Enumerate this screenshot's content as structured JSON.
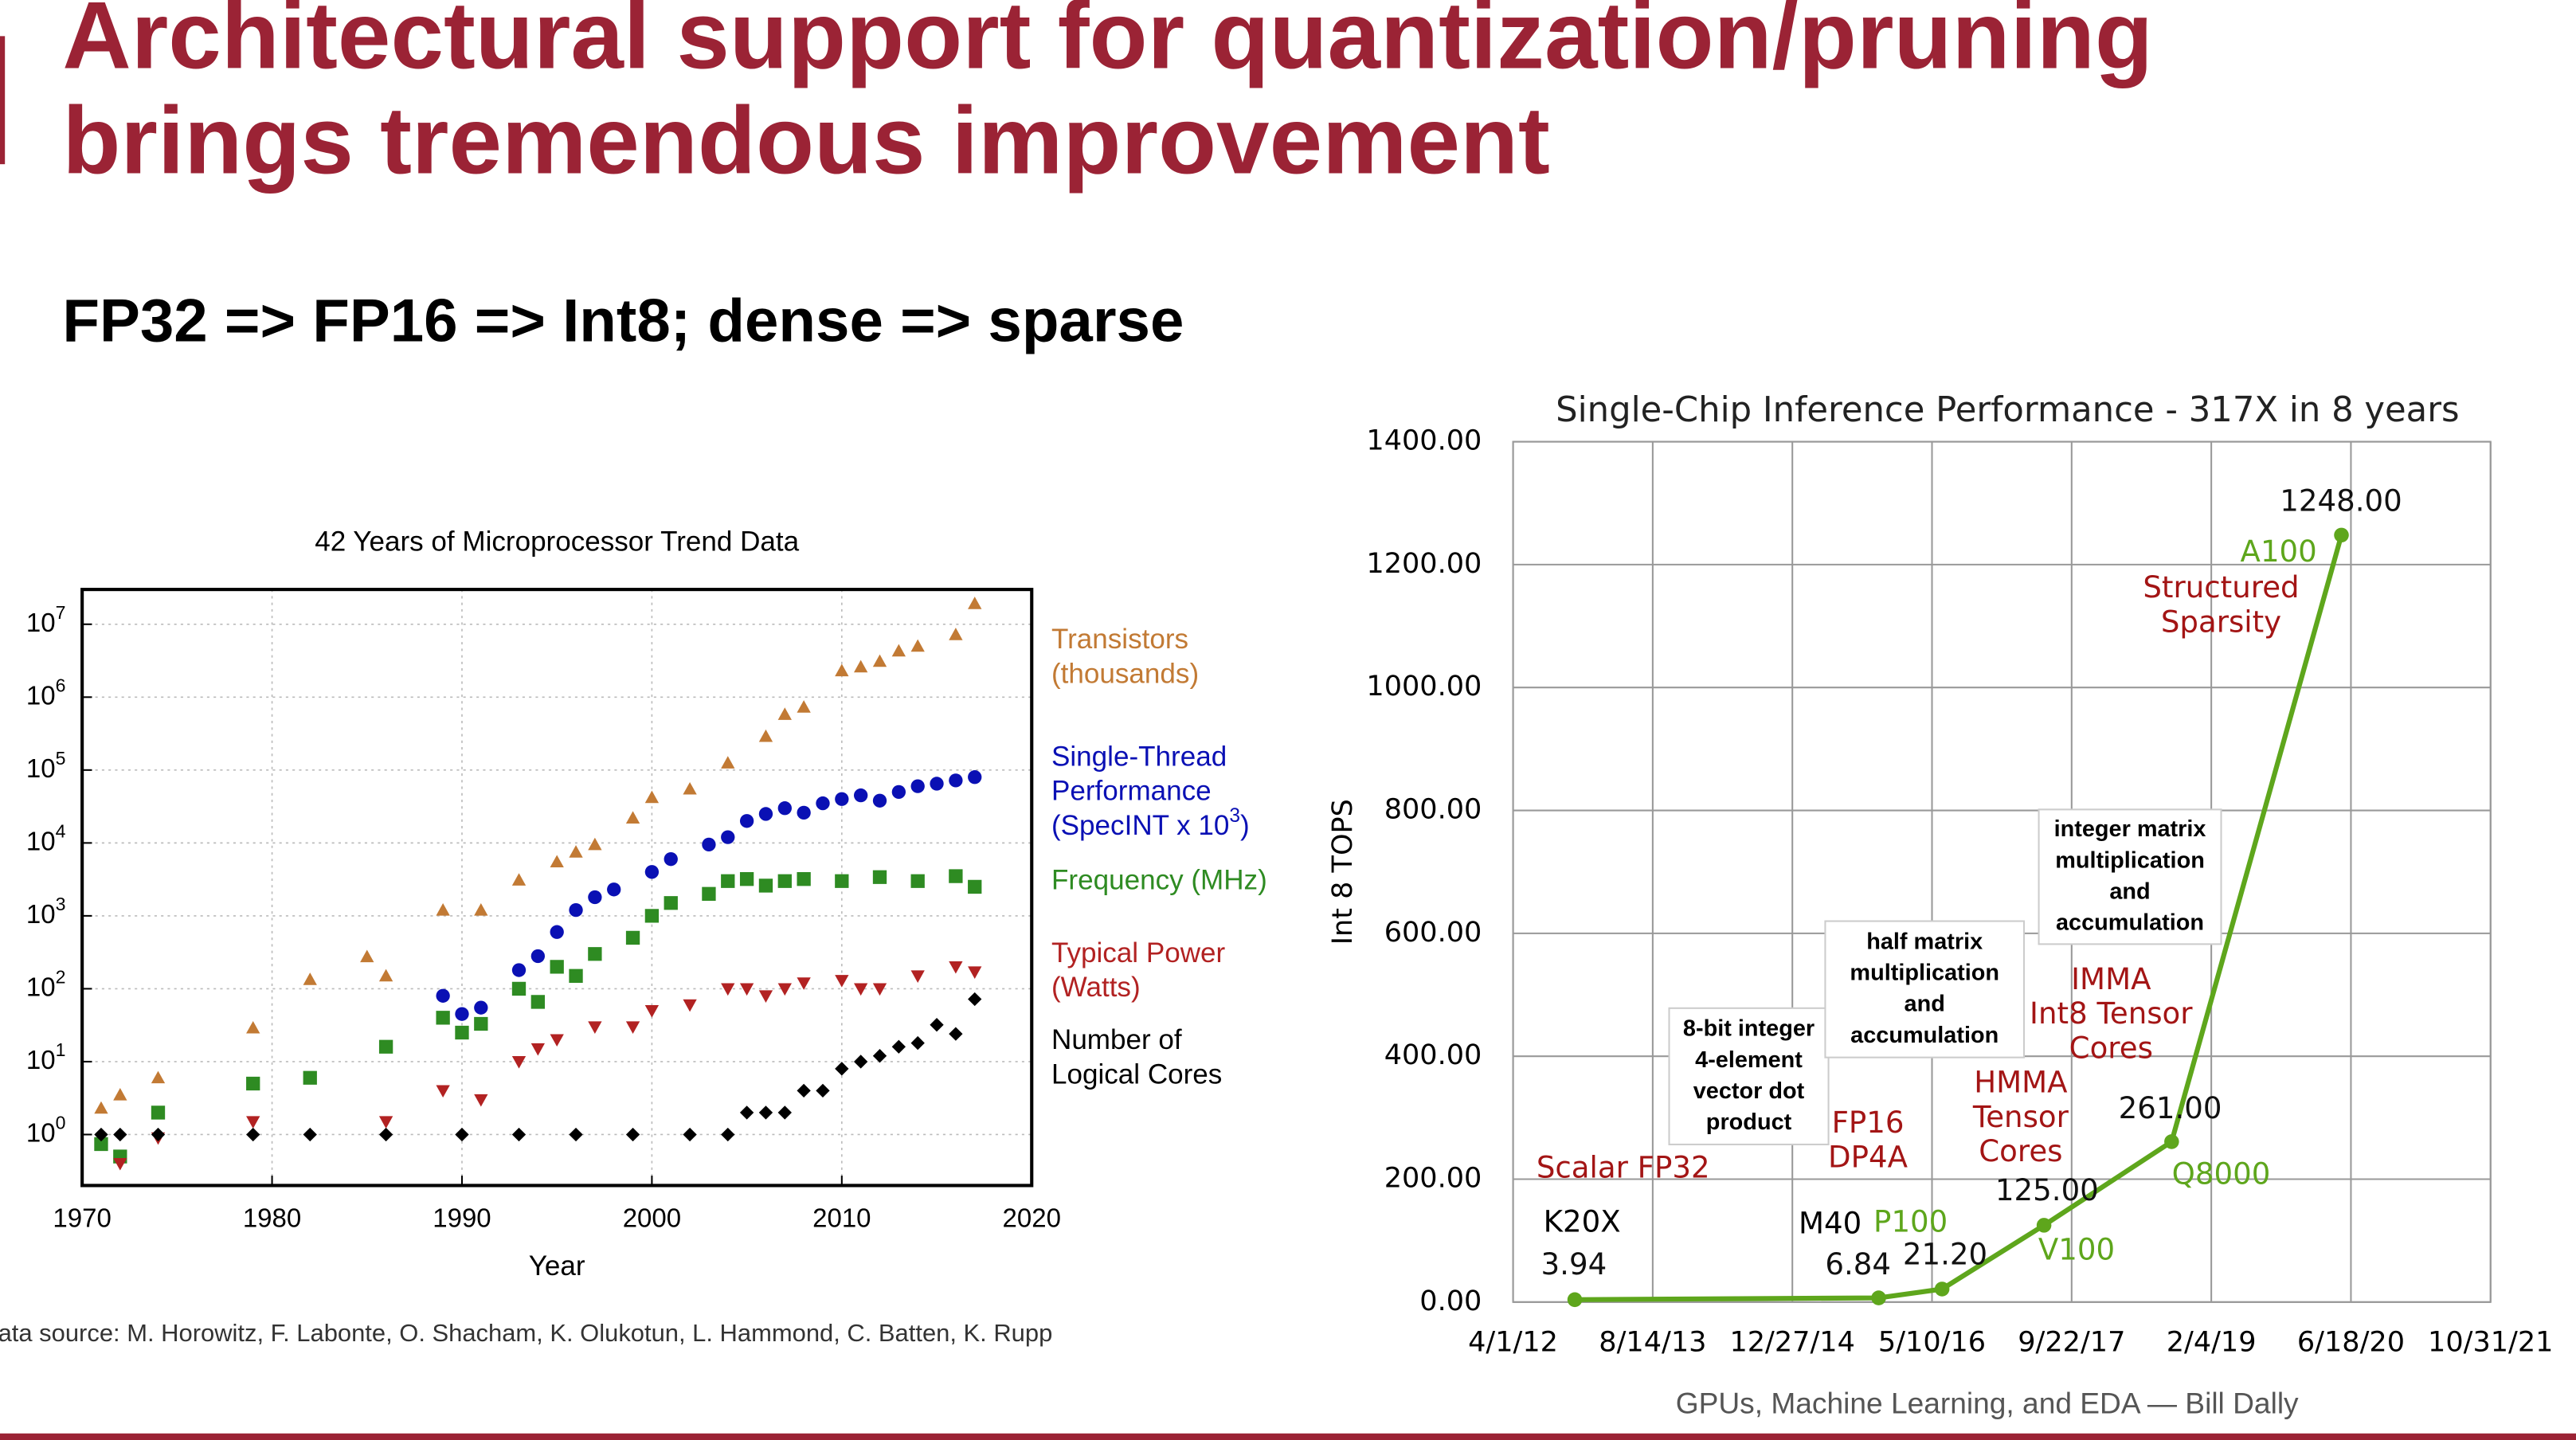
{
  "title": "Architectural support for quantization/pruning\nbrings tremendous improvement",
  "subtitle": "FP32 => FP16 => Int8; dense => sparse",
  "source": "Data source: M. Horowitz, F. Labonte, O. Shacham, K. Olukotun, L. Hammond, C. Batten, K. Rupp",
  "footer": "GPUs, Machine Learning, and EDA — Bill Dally",
  "chart_data": [
    {
      "type": "scatter",
      "title": "42 Years of Microprocessor Trend Data",
      "xlabel": "Year",
      "xlim": [
        1970,
        2020
      ],
      "xticks": [
        1970,
        1980,
        1990,
        2000,
        2010,
        2020
      ],
      "ylim": [
        0.2,
        30000000
      ],
      "log_y": true,
      "grid": true,
      "yticks": [
        {
          "value": 1,
          "label": "10^0"
        },
        {
          "value": 10,
          "label": "10^1"
        },
        {
          "value": 100,
          "label": "10^2"
        },
        {
          "value": 1000,
          "label": "10^3"
        },
        {
          "value": 10000,
          "label": "10^4"
        },
        {
          "value": 100000,
          "label": "10^5"
        },
        {
          "value": 1000000,
          "label": "10^6"
        },
        {
          "value": 10000000,
          "label": "10^7"
        }
      ],
      "series": [
        {
          "name": "Transistors\n(thousands)",
          "color": "#c27a34",
          "marker": "triangle-up",
          "x": [
            1971,
            1972,
            1974,
            1979,
            1982,
            1985,
            1986,
            1989,
            1991,
            1993,
            1995,
            1996,
            1997,
            1999,
            2000,
            2002,
            2004,
            2006,
            2007,
            2008,
            2010,
            2011,
            2012,
            2013,
            2014,
            2016,
            2017
          ],
          "values": [
            2.3,
            3.5,
            6,
            29,
            134,
            275,
            150,
            1200,
            1200,
            3100,
            5500,
            7500,
            9500,
            22000,
            42000,
            55000,
            125000,
            290000,
            580000,
            730000,
            2300000,
            2600000,
            3100000,
            4300000,
            5000000,
            7200000,
            19200000
          ]
        },
        {
          "name": "Single-Thread\nPerformance\n(SpecINT x 10^3)",
          "color": "#0a10b4",
          "marker": "circle",
          "x": [
            1989,
            1990,
            1991,
            1993,
            1994,
            1995,
            1996,
            1997,
            1998,
            2000,
            2001,
            2003,
            2004,
            2005,
            2006,
            2007,
            2008,
            2009,
            2010,
            2011,
            2012,
            2013,
            2014,
            2015,
            2016,
            2017
          ],
          "values": [
            80,
            45,
            55,
            180,
            280,
            600,
            1200,
            1800,
            2300,
            4000,
            6000,
            9500,
            12000,
            20000,
            25000,
            30000,
            26000,
            35000,
            40000,
            45000,
            38000,
            50000,
            60000,
            65000,
            72000,
            80000
          ]
        },
        {
          "name": "Frequency (MHz)",
          "color": "#2e8b22",
          "marker": "square",
          "x": [
            1971,
            1972,
            1974,
            1979,
            1982,
            1986,
            1989,
            1990,
            1991,
            1993,
            1994,
            1995,
            1996,
            1997,
            1999,
            2000,
            2001,
            2003,
            2004,
            2005,
            2006,
            2007,
            2008,
            2010,
            2012,
            2014,
            2016,
            2017
          ],
          "values": [
            0.74,
            0.5,
            2,
            5,
            6,
            16,
            40,
            25,
            33,
            100,
            66,
            200,
            150,
            300,
            500,
            1000,
            1500,
            2000,
            3000,
            3200,
            2600,
            3000,
            3200,
            3000,
            3400,
            3000,
            3500,
            2500
          ]
        },
        {
          "name": "Typical Power\n(Watts)",
          "color": "#b22222",
          "marker": "triangle-down",
          "x": [
            1972,
            1974,
            1979,
            1986,
            1989,
            1991,
            1993,
            1994,
            1995,
            1997,
            1999,
            2000,
            2002,
            2004,
            2005,
            2006,
            2007,
            2008,
            2010,
            2011,
            2012,
            2014,
            2016,
            2017
          ],
          "values": [
            0.4,
            0.9,
            1.5,
            1.5,
            4,
            3,
            10,
            15,
            20,
            30,
            30,
            50,
            60,
            100,
            100,
            80,
            100,
            120,
            130,
            100,
            100,
            150,
            200,
            170
          ]
        },
        {
          "name": "Number of\nLogical Cores",
          "color": "#000000",
          "marker": "diamond",
          "x": [
            1971,
            1972,
            1974,
            1979,
            1982,
            1986,
            1990,
            1993,
            1996,
            1999,
            2002,
            2004,
            2005,
            2006,
            2007,
            2008,
            2009,
            2010,
            2011,
            2012,
            2013,
            2014,
            2015,
            2016,
            2017
          ],
          "values": [
            1,
            1,
            1,
            1,
            1,
            1,
            1,
            1,
            1,
            1,
            1,
            1,
            2,
            2,
            2,
            4,
            4,
            8,
            10,
            12,
            16,
            18,
            32,
            24,
            72
          ]
        }
      ]
    },
    {
      "type": "line",
      "title": "Single-Chip Inference Performance - 317X in 8 years",
      "ylabel": "Int 8 TOPS",
      "xlim": [
        "4/1/12",
        "10/31/21"
      ],
      "xticks": [
        "4/1/12",
        "8/14/13",
        "12/27/14",
        "5/10/16",
        "9/22/17",
        "2/4/19",
        "6/18/20",
        "10/31/21"
      ],
      "ylim": [
        0,
        1400
      ],
      "yticks": [
        {
          "value": 0,
          "label": "0.00"
        },
        {
          "value": 200,
          "label": "200.00"
        },
        {
          "value": 400,
          "label": "400.00"
        },
        {
          "value": 600,
          "label": "600.00"
        },
        {
          "value": 800,
          "label": "800.00"
        },
        {
          "value": 1000,
          "label": "1000.00"
        },
        {
          "value": 1200,
          "label": "1200.00"
        },
        {
          "value": 1400,
          "label": "1400.00"
        }
      ],
      "grid": true,
      "color": "#5ea61c",
      "x": [
        "11/8/12",
        "11/1/15",
        "6/15/16",
        "6/15/17",
        "9/15/18",
        "5/15/20"
      ],
      "values": [
        3.94,
        6.84,
        21.2,
        125,
        261,
        1248
      ],
      "value_labels": [
        "3.94",
        "6.84",
        "21.20",
        "125.00",
        "261.00",
        "1248.00"
      ],
      "point_labels": [
        "K20X",
        "M40",
        "P100",
        "V100",
        "Q8000",
        "A100"
      ],
      "annotations": [
        "Scalar FP32",
        "FP16\nDP4A",
        "HMMA\nTensor\nCores",
        "IMMA\nInt8 Tensor\nCores",
        "Structured\nSparsity"
      ],
      "callouts": [
        "8-bit integer\n4-element\nvector dot\nproduct",
        "half matrix\nmultiplication\nand\naccumulation",
        "integer matrix\nmultiplication\nand\naccumulation"
      ]
    }
  ]
}
